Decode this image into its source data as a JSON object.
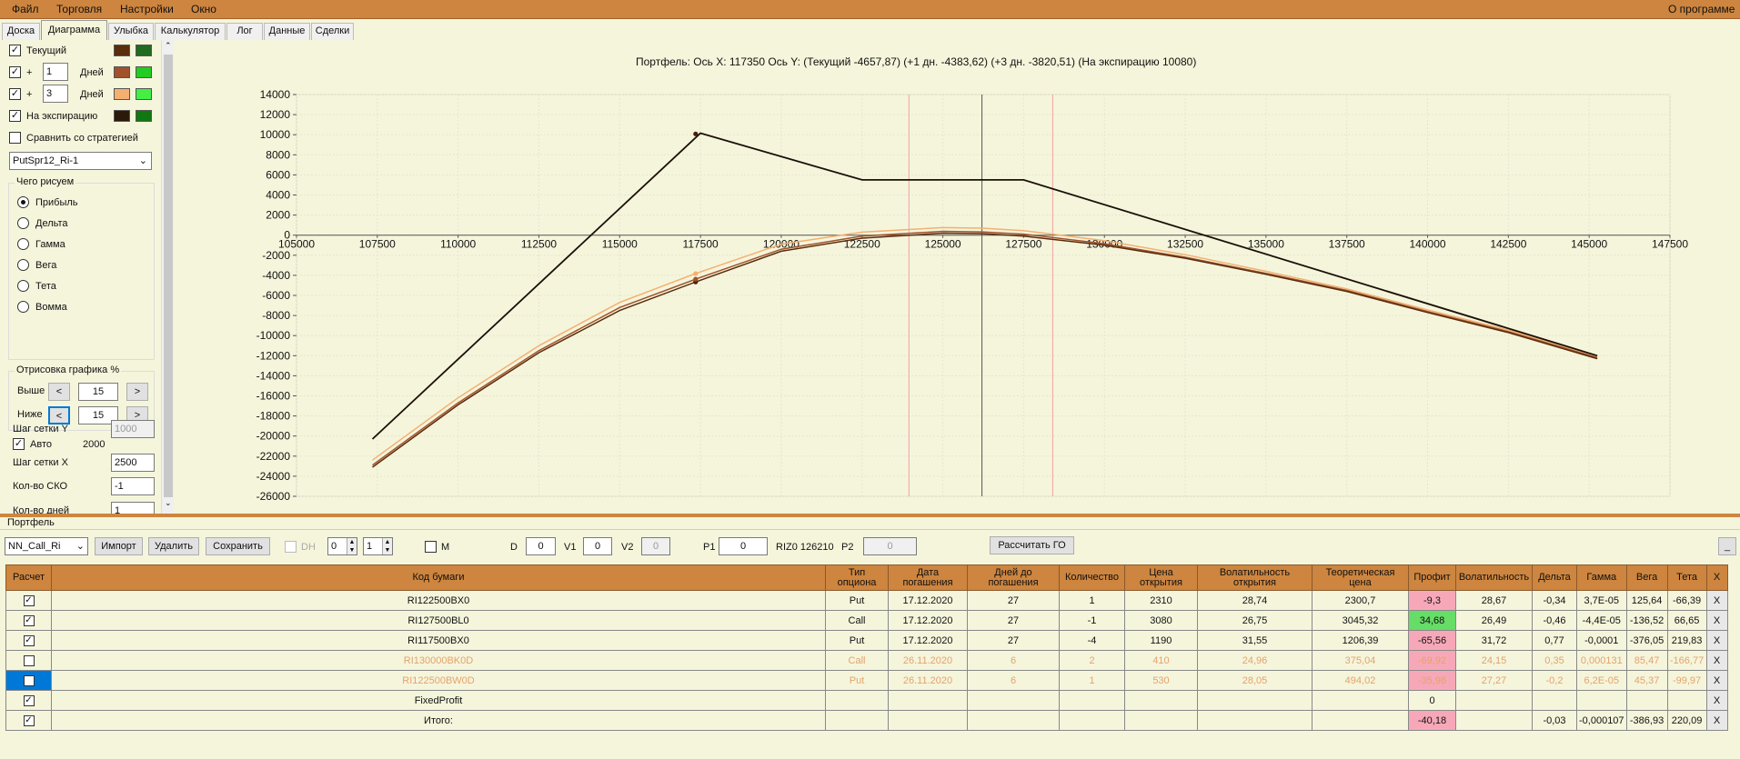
{
  "menu": {
    "file": "Файл",
    "trade": "Торговля",
    "settings": "Настройки",
    "window": "Окно",
    "about": "О программе"
  },
  "tabs": [
    "Доска",
    "Диаграмма",
    "Улыбка",
    "Калькулятор",
    "Лог",
    "Данные",
    "Сделки"
  ],
  "left": {
    "current_label": "Текущий",
    "plus": "+",
    "days1": "1",
    "days2": "3",
    "days_label": "Дней",
    "expiry_label": "На экспирацию",
    "compare_label": "Сравнить со стратегией",
    "strategy_select": "PutSpr12_Ri-1",
    "draw_group": "Чего рисуем",
    "radios": [
      "Прибыль",
      "Дельта",
      "Гамма",
      "Вега",
      "Тета",
      "Вомма"
    ],
    "render_group": "Отрисовка графика %",
    "above_label": "Выше",
    "below_label": "Ниже",
    "above_val": "15",
    "below_val": "15",
    "prev": "<",
    "next": ">",
    "gridy_label": "Шаг сетки Y",
    "gridy_val": "1000",
    "auto_label": "Авто",
    "auto_val": "2000",
    "gridx_label": "Шаг сетки X",
    "gridx_val": "2500",
    "sko_label": "Кол-во СКО",
    "sko_val": "-1",
    "days_count_label": "Кол-во дней",
    "days_count_val": "1",
    "colors": {
      "current": [
        "#5a2d0c",
        "#1f6b1f"
      ],
      "d1": [
        "#a0522d",
        "#22cc22"
      ],
      "d3": [
        "#f4b070",
        "#44ee44"
      ],
      "exp": [
        "#2b1a0a",
        "#117711"
      ]
    }
  },
  "chart_header": "Портфель: Ось X: 117350 Ось Y:  (Текущий -4657,87)  (+1 дн. -4383,62)  (+3 дн. -3820,51)  (На экспирацию 10080)",
  "chart_data": {
    "type": "line",
    "xlim": [
      105000,
      147500
    ],
    "ylim": [
      -26000,
      14000
    ],
    "x_ticks": [
      "105000",
      "107500",
      "110000",
      "112500",
      "115000",
      "117500",
      "120000",
      "122500",
      "125000",
      "127500",
      "130000",
      "132500",
      "135000",
      "137500",
      "140000",
      "142500",
      "145000",
      "147500"
    ],
    "y_ticks": [
      "14000",
      "12000",
      "10000",
      "8000",
      "6000",
      "4000",
      "2000",
      "0",
      "-2000",
      "-4000",
      "-6000",
      "-8000",
      "-10000",
      "-12000",
      "-14000",
      "-16000",
      "-18000",
      "-20000",
      "-22000",
      "-24000",
      "-26000"
    ],
    "vlines": [
      {
        "x": 123950,
        "color": "#f4a0a0"
      },
      {
        "x": 126210,
        "color": "#555"
      },
      {
        "x": 128400,
        "color": "#f4a0a0"
      }
    ],
    "series": [
      {
        "name": "На экспирацию",
        "color": "#1a1008",
        "x": [
          107350,
          117500,
          122500,
          127500,
          145250
        ],
        "y": [
          -20300,
          10150,
          5500,
          5500,
          -12000
        ]
      },
      {
        "name": "Текущий",
        "color": "#5a2d0c",
        "x": [
          107350,
          110000,
          112500,
          115000,
          117350,
          120000,
          122500,
          125000,
          126210,
          127500,
          130000,
          132500,
          135000,
          137500,
          140000,
          142500,
          145250
        ],
        "y": [
          -23100,
          -16900,
          -11700,
          -7500,
          -4658,
          -1600,
          -300,
          200,
          150,
          -100,
          -1000,
          -2300,
          -3900,
          -5600,
          -7700,
          -9700,
          -12300
        ]
      },
      {
        "name": "+1 дн.",
        "color": "#a0522d",
        "x": [
          107350,
          110000,
          112500,
          115000,
          117350,
          120000,
          122500,
          125000,
          126210,
          127500,
          130000,
          132500,
          135000,
          137500,
          140000,
          142500,
          145250
        ],
        "y": [
          -22900,
          -16700,
          -11500,
          -7200,
          -4384,
          -1400,
          -100,
          380,
          330,
          100,
          -850,
          -2200,
          -3800,
          -5500,
          -7600,
          -9600,
          -12200
        ]
      },
      {
        "name": "+3 дн.",
        "color": "#f4b070",
        "x": [
          107350,
          110000,
          112500,
          115000,
          117350,
          120000,
          122500,
          125000,
          126210,
          127500,
          130000,
          132500,
          135000,
          137500,
          140000,
          142500,
          145250
        ],
        "y": [
          -22400,
          -16200,
          -11000,
          -6700,
          -3821,
          -900,
          300,
          750,
          700,
          450,
          -550,
          -1950,
          -3600,
          -5350,
          -7450,
          -9450,
          -12050
        ]
      }
    ]
  },
  "portfolio": {
    "title": "Портфель",
    "select": "NN_Call_Ri",
    "import": "Импорт",
    "delete": "Удалить",
    "save": "Сохранить",
    "dh": "DH",
    "spin1": "0",
    "spin2": "1",
    "m": "M",
    "d_label": "D",
    "d_val": "0",
    "v1_label": "V1",
    "v1_val": "0",
    "v2_label": "V2",
    "v2_val": "0",
    "p1_label": "P1",
    "p1_val": "0",
    "riz": "RIZ0 126210",
    "p2_label": "P2",
    "p2_val": "0",
    "calc_go": "Рассчитать ГО",
    "minimize": "_"
  },
  "table": {
    "headers": [
      "Расчет",
      "Код бумаги",
      "Тип опциона",
      "Дата погашения",
      "Дней до погашения",
      "Количество",
      "Цена открытия",
      "Волатильность открытия",
      "Теоретическая цена",
      "Профит",
      "Волатильность",
      "Дельта",
      "Гамма",
      "Вега",
      "Тета",
      "X"
    ],
    "rows": [
      {
        "check": "✓",
        "code": "RI122500BX0",
        "type": "Put",
        "date": "17.12.2020",
        "days": "27",
        "qty": "1",
        "open": "2310",
        "vol_open": "28,74",
        "theo": "2300,7",
        "profit": "-9,3",
        "vol": "28,67",
        "delta": "-0,34",
        "gamma": "3,7E-05",
        "vega": "125,64",
        "theta": "-66,39",
        "x": "X"
      },
      {
        "check": "✓",
        "code": "RI127500BL0",
        "type": "Call",
        "date": "17.12.2020",
        "days": "27",
        "qty": "-1",
        "open": "3080",
        "vol_open": "26,75",
        "theo": "3045,32",
        "profit": "34,68",
        "vol": "26,49",
        "delta": "-0,46",
        "gamma": "-4,4E-05",
        "vega": "-136,52",
        "theta": "66,65",
        "x": "X"
      },
      {
        "check": "✓",
        "code": "RI117500BX0",
        "type": "Put",
        "date": "17.12.2020",
        "days": "27",
        "qty": "-4",
        "open": "1190",
        "vol_open": "31,55",
        "theo": "1206,39",
        "profit": "-65,56",
        "vol": "31,72",
        "delta": "0,77",
        "gamma": "-0,0001",
        "vega": "-376,05",
        "theta": "219,83",
        "x": "X"
      },
      {
        "check": "",
        "code": "RI130000BK0D",
        "type": "Call",
        "date": "26.11.2020",
        "days": "6",
        "qty": "2",
        "open": "410",
        "vol_open": "24,96",
        "theo": "375,04",
        "profit": "-69,92",
        "vol": "24,15",
        "delta": "0,35",
        "gamma": "0,000131",
        "vega": "85,47",
        "theta": "-166,77",
        "x": "X"
      },
      {
        "check": "",
        "code": "RI122500BW0D",
        "type": "Put",
        "date": "26.11.2020",
        "days": "6",
        "qty": "1",
        "open": "530",
        "vol_open": "28,05",
        "theo": "494,02",
        "profit": "-35,98",
        "vol": "27,27",
        "delta": "-0,2",
        "gamma": "6,2E-05",
        "vega": "45,37",
        "theta": "-99,97",
        "x": "X"
      },
      {
        "check": "✓",
        "code": "FixedProfit",
        "type": "",
        "date": "",
        "days": "",
        "qty": "",
        "open": "",
        "vol_open": "",
        "theo": "",
        "profit": "0",
        "vol": "",
        "delta": "",
        "gamma": "",
        "vega": "",
        "theta": "",
        "x": "X"
      },
      {
        "check": "✓",
        "code": "Итого:",
        "type": "",
        "date": "",
        "days": "",
        "qty": "",
        "open": "",
        "vol_open": "",
        "theo": "",
        "profit": "-40,18",
        "vol": "",
        "delta": "-0,03",
        "gamma": "-0,000107",
        "vega": "-386,93",
        "theta": "220,09",
        "x": "X"
      }
    ]
  }
}
